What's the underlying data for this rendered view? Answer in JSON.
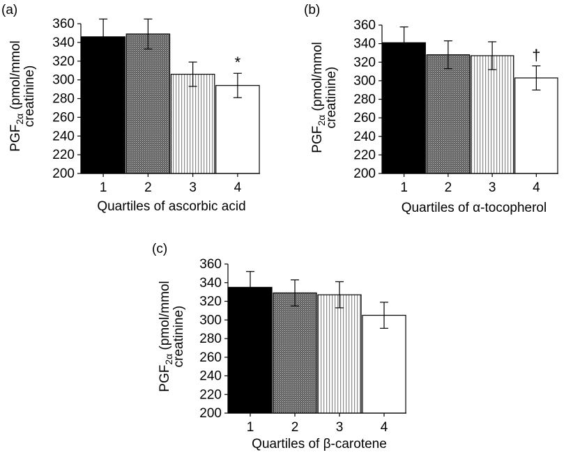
{
  "figure": {
    "ylabel_prefix": "PGF",
    "ylabel_subscript": "2α",
    "ylabel_rest": " (pmol/mmol",
    "ylabel_line2": "creatinine)"
  },
  "chart_data": [
    {
      "type": "bar",
      "panel_label": "(a)",
      "categories": [
        "1",
        "2",
        "3",
        "4"
      ],
      "values": [
        346,
        349,
        306,
        294
      ],
      "errors": [
        19,
        16,
        13,
        13
      ],
      "annotations": [
        {
          "category": "4",
          "text": "*"
        }
      ],
      "xlabel": "Quartiles of ascorbic acid",
      "ylabel": "PGF2α (pmol/mmol creatinine)",
      "ylim": [
        200,
        360
      ],
      "yticks": [
        200,
        220,
        240,
        260,
        280,
        300,
        320,
        340,
        360
      ],
      "bar_fills": [
        "solid-black",
        "dense-crosshatch",
        "vertical-lines",
        "white"
      ],
      "grid": false
    },
    {
      "type": "bar",
      "panel_label": "(b)",
      "categories": [
        "1",
        "2",
        "3",
        "4"
      ],
      "values": [
        341,
        328,
        327,
        303
      ],
      "errors": [
        17,
        15,
        15,
        13
      ],
      "annotations": [
        {
          "category": "4",
          "text": "†"
        }
      ],
      "xlabel": "Quartiles of α-tocopherol",
      "ylabel": "PGF2α (pmol/mmol creatinine)",
      "ylim": [
        200,
        360
      ],
      "yticks": [
        200,
        220,
        240,
        260,
        280,
        300,
        320,
        340,
        360
      ],
      "bar_fills": [
        "solid-black",
        "dense-crosshatch",
        "vertical-lines",
        "white"
      ],
      "grid": false
    },
    {
      "type": "bar",
      "panel_label": "(c)",
      "categories": [
        "1",
        "2",
        "3",
        "4"
      ],
      "values": [
        335,
        329,
        327,
        305
      ],
      "errors": [
        17,
        14,
        14,
        14
      ],
      "annotations": [],
      "xlabel": "Quartiles of β-carotene",
      "ylabel": "PGF2α (pmol/mmol creatinine)",
      "ylim": [
        200,
        360
      ],
      "yticks": [
        200,
        220,
        240,
        260,
        280,
        300,
        320,
        340,
        360
      ],
      "bar_fills": [
        "solid-black",
        "dense-crosshatch",
        "vertical-lines",
        "white"
      ],
      "grid": false
    }
  ]
}
